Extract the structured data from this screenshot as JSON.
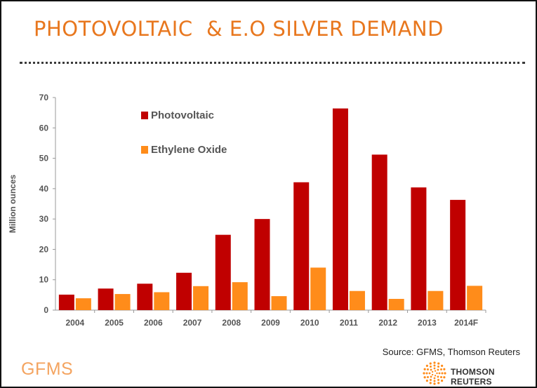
{
  "slide": {
    "title": "PHOTOVOLTAIC  & E.O SILVER DEMAND",
    "source": "Source: GFMS, Thomson Reuters",
    "gfms_logo": "GFMS",
    "tr_logo": "THOMSON REUTERS"
  },
  "colors": {
    "title": "#E8771E",
    "photovoltaic": "#C00000",
    "ethylene_oxide": "#FF8C1A",
    "gfms": "#F4A460"
  },
  "chart_data": {
    "type": "bar",
    "title": "",
    "xlabel": "",
    "ylabel": "Million ounces",
    "ylim": [
      0,
      70
    ],
    "yticks": [
      0,
      10,
      20,
      30,
      40,
      50,
      60,
      70
    ],
    "grid": false,
    "legend": "top-left",
    "categories": [
      "2004",
      "2005",
      "2006",
      "2007",
      "2008",
      "2009",
      "2010",
      "2011",
      "2012",
      "2013",
      "2014F"
    ],
    "series": [
      {
        "name": "Photovoltaic",
        "values": [
          5.1,
          7.1,
          8.7,
          12.3,
          24.8,
          30.0,
          42.1,
          66.4,
          51.2,
          40.4,
          36.3
        ]
      },
      {
        "name": "Ethylene Oxide",
        "values": [
          3.9,
          5.3,
          5.9,
          7.9,
          9.2,
          4.6,
          14.0,
          6.3,
          3.7,
          6.3,
          8.0
        ]
      }
    ]
  }
}
